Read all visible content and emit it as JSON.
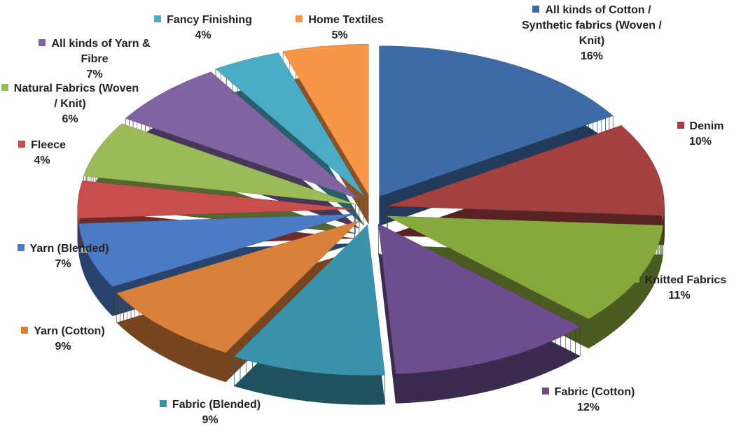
{
  "chart_data": {
    "type": "pie",
    "categories": [
      "All kinds of Cotton / Synthetic fabrics (Woven / Knit)",
      "Denim",
      "Knitted Fabrics",
      "Fabric (Cotton)",
      "Fabric (Blended)",
      "Yarn (Cotton)",
      "Yarn (Blended)",
      "Fleece",
      "Natural Fabrics (Woven / Knit)",
      "All kinds of Yarn & Fibre",
      "Fancy Finishing",
      "Home Textiles"
    ],
    "values": [
      16,
      10,
      11,
      12,
      9,
      9,
      7,
      4,
      6,
      7,
      4,
      5
    ],
    "value_labels": [
      "16%",
      "10%",
      "11%",
      "12%",
      "9%",
      "9%",
      "7%",
      "4%",
      "6%",
      "7%",
      "4%",
      "5%"
    ],
    "colors": [
      "#3e6aa6",
      "#a34040",
      "#86a83c",
      "#6c4e8e",
      "#3a93ab",
      "#d9803a",
      "#4a7bc4",
      "#c84e4c",
      "#9bbb59",
      "#8064a2",
      "#4bacc6",
      "#f79646"
    ]
  }
}
